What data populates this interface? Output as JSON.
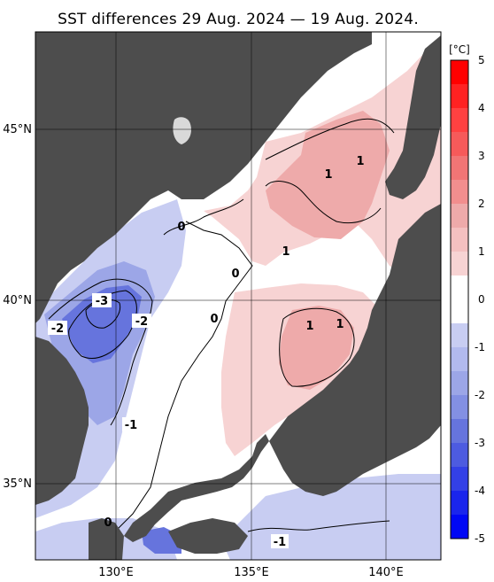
{
  "map": {
    "title": "SST differences 29 Aug. 2024 — 19 Aug. 2024.",
    "lat_labels": [
      "45°N",
      "40°N",
      "35°N"
    ],
    "lon_labels": [
      "130°E",
      "135°E",
      "140°E"
    ],
    "lat_range": [
      33.0,
      48.0
    ],
    "lon_range": [
      127.0,
      142.0
    ],
    "contour_labels": [
      "-3",
      "-2",
      "-2",
      "-1",
      "-1",
      "0",
      "0",
      "0",
      "0",
      "1",
      "1",
      "1",
      "1",
      "1"
    ],
    "colors": {
      "land": "#4d4d4d",
      "no_data": "#d9d9d9",
      "neg1": "#c8cdf2",
      "neg2": "#9ca6e7",
      "neg3": "#6674dd",
      "pos1": "#f7d3d3",
      "pos2": "#eeaaaa"
    }
  },
  "colorbar": {
    "unit": "[°C]",
    "tick_labels": [
      "5",
      "4",
      "3",
      "2",
      "1",
      "0",
      "-1",
      "-2",
      "-3",
      "-4",
      "-5"
    ],
    "range": [
      -5,
      5
    ]
  }
}
